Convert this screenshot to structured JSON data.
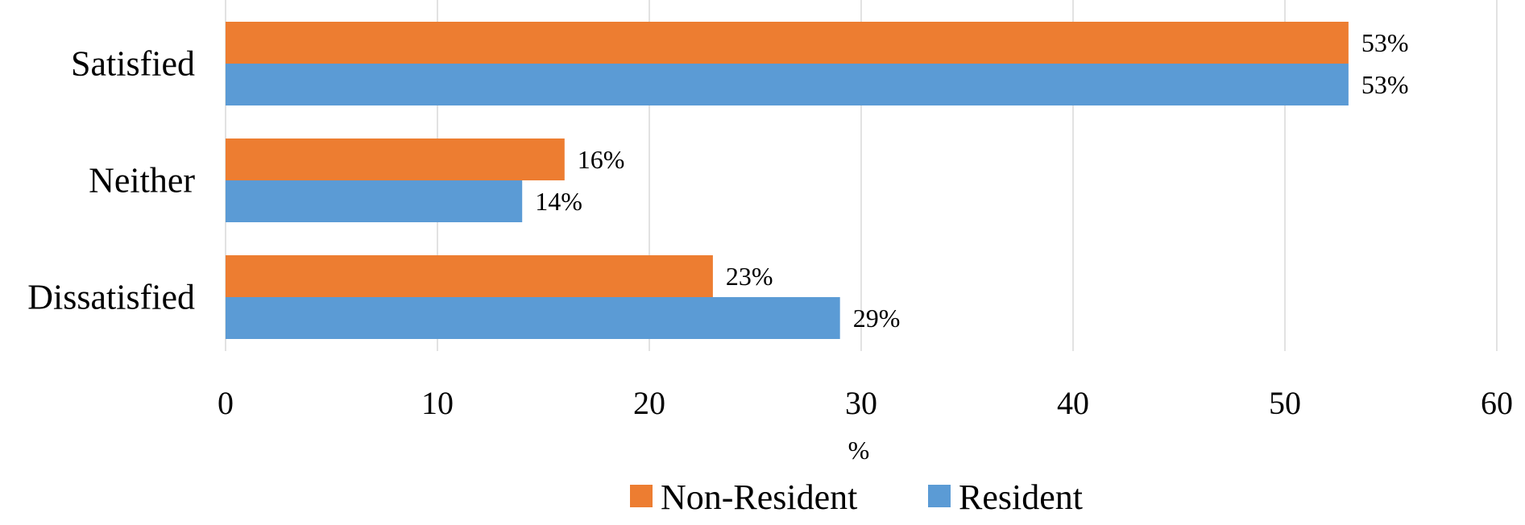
{
  "chart_data": {
    "type": "bar",
    "orientation": "horizontal",
    "categories": [
      "Satisfied",
      "Neither",
      "Dissatisfied"
    ],
    "series": [
      {
        "name": "Non-Resident",
        "color": "#ED7D31",
        "values": [
          53,
          16,
          23
        ],
        "labels": [
          "53%",
          "16%",
          "23%"
        ]
      },
      {
        "name": "Resident",
        "color": "#5B9BD5",
        "values": [
          53,
          14,
          29
        ],
        "labels": [
          "53%",
          "14%",
          "29%"
        ]
      }
    ],
    "xlabel": "%",
    "ylabel": "",
    "xlim": [
      0,
      60
    ],
    "x_ticks": [
      0,
      10,
      20,
      30,
      40,
      50,
      60
    ],
    "x_tick_labels": [
      "0",
      "10",
      "20",
      "30",
      "40",
      "50",
      "60"
    ],
    "grid": "vertical",
    "legend": "bottom-center",
    "gridline_color": "#D9D9D9"
  }
}
